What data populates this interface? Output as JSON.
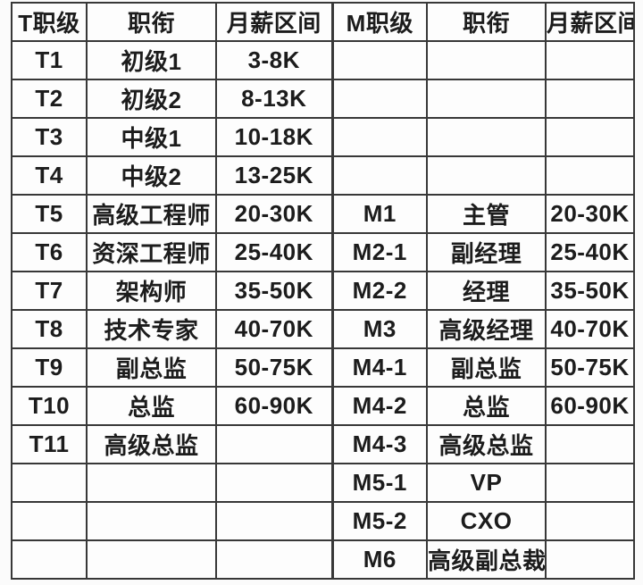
{
  "chart_data": {
    "type": "table",
    "columns": [
      "T职级",
      "职衔",
      "月薪区间",
      "M职级",
      "职衔",
      "月薪区间"
    ],
    "rows": [
      [
        "T1",
        "初级1",
        "3-8K",
        "",
        "",
        ""
      ],
      [
        "T2",
        "初级2",
        "8-13K",
        "",
        "",
        ""
      ],
      [
        "T3",
        "中级1",
        "10-18K",
        "",
        "",
        ""
      ],
      [
        "T4",
        "中级2",
        "13-25K",
        "",
        "",
        ""
      ],
      [
        "T5",
        "高级工程师",
        "20-30K",
        "M1",
        "主管",
        "20-30K"
      ],
      [
        "T6",
        "资深工程师",
        "25-40K",
        "M2-1",
        "副经理",
        "25-40K"
      ],
      [
        "T7",
        "架构师",
        "35-50K",
        "M2-2",
        "经理",
        "35-50K"
      ],
      [
        "T8",
        "技术专家",
        "40-70K",
        "M3",
        "高级经理",
        "40-70K"
      ],
      [
        "T9",
        "副总监",
        "50-75K",
        "M4-1",
        "副总监",
        "50-75K"
      ],
      [
        "T10",
        "总监",
        "60-90K",
        "M4-2",
        "总监",
        "60-90K"
      ],
      [
        "T11",
        "高级总监",
        "",
        "M4-3",
        "高级总监",
        ""
      ],
      [
        "",
        "",
        "",
        "M5-1",
        "VP",
        ""
      ],
      [
        "",
        "",
        "",
        "M5-2",
        "CXO",
        ""
      ],
      [
        "",
        "",
        "",
        "M6",
        "高级副总裁",
        ""
      ]
    ],
    "layout_hints": {
      "grid": "on",
      "sub_tables": [
        "T-track columns 1-3",
        "M-track columns 4-6"
      ]
    }
  },
  "colors": {
    "background": "#fbfbfb",
    "cell_background": "#fdfdfd",
    "border": "#383838",
    "text": "#1c1c1c"
  }
}
